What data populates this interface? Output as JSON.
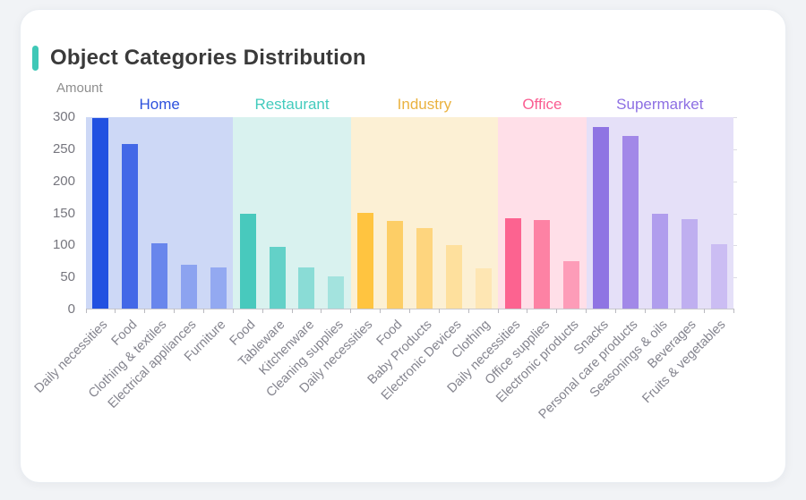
{
  "header": {
    "accent_color": "#3FC8B7"
  },
  "chart_data": {
    "type": "bar",
    "title": "Object Categories Distribution",
    "ylabel": "Amount",
    "ylim": [
      0,
      300
    ],
    "yticks": [
      0,
      50,
      100,
      150,
      200,
      250,
      300
    ],
    "grid": false,
    "legend_position": "none",
    "groups": [
      {
        "name": "Home",
        "label_color": "#2D51DD",
        "band_color": "#CDD8F6",
        "bar_colors": [
          "#2251E1",
          "#4368E7",
          "#6886EC",
          "#8CA3F0",
          "#93A9F1"
        ],
        "items": [
          {
            "label": "Daily necessities",
            "value": 298
          },
          {
            "label": "Food",
            "value": 258
          },
          {
            "label": "Clothing & textiles",
            "value": 102
          },
          {
            "label": "Electrical appliances",
            "value": 69
          },
          {
            "label": "Furniture",
            "value": 64
          }
        ]
      },
      {
        "name": "Restaurant",
        "label_color": "#43CBBD",
        "band_color": "#D9F2EF",
        "bar_colors": [
          "#48C9BD",
          "#63D1C8",
          "#8ADCD6",
          "#A3E3DE"
        ],
        "items": [
          {
            "label": "Food",
            "value": 148
          },
          {
            "label": "Tableware",
            "value": 97
          },
          {
            "label": "Kitchenware",
            "value": 65
          },
          {
            "label": "Cleaning supplies",
            "value": 51
          }
        ]
      },
      {
        "name": "Industry",
        "label_color": "#EAB23F",
        "band_color": "#FCF0D4",
        "bar_colors": [
          "#FFC440",
          "#FDCE66",
          "#FED57E",
          "#FEE09D",
          "#FEE6B3"
        ],
        "items": [
          {
            "label": "Daily necessities",
            "value": 150
          },
          {
            "label": "Food",
            "value": 138
          },
          {
            "label": "Baby Products",
            "value": 126
          },
          {
            "label": "Electronic Devices",
            "value": 99
          },
          {
            "label": "Clothing",
            "value": 63
          }
        ]
      },
      {
        "name": "Office",
        "label_color": "#FA5D91",
        "band_color": "#FFDFE8",
        "bar_colors": [
          "#FC6390",
          "#FD82A4",
          "#FD9CB8"
        ],
        "items": [
          {
            "label": "Daily necessities",
            "value": 142
          },
          {
            "label": "Office supplies",
            "value": 139
          },
          {
            "label": "Electronic products",
            "value": 75
          }
        ]
      },
      {
        "name": "Supermarket",
        "label_color": "#8D6FE3",
        "band_color": "#E5E0F8",
        "bar_colors": [
          "#8F74E3",
          "#A288E8",
          "#B09DED",
          "#BFAFF0",
          "#CBBDF3"
        ],
        "items": [
          {
            "label": "Snacks",
            "value": 285
          },
          {
            "label": "Personal care products",
            "value": 271
          },
          {
            "label": "Seasonings & oils",
            "value": 148
          },
          {
            "label": "Beverages",
            "value": 140
          },
          {
            "label": "Fruits & vegetables",
            "value": 101
          }
        ]
      }
    ]
  }
}
